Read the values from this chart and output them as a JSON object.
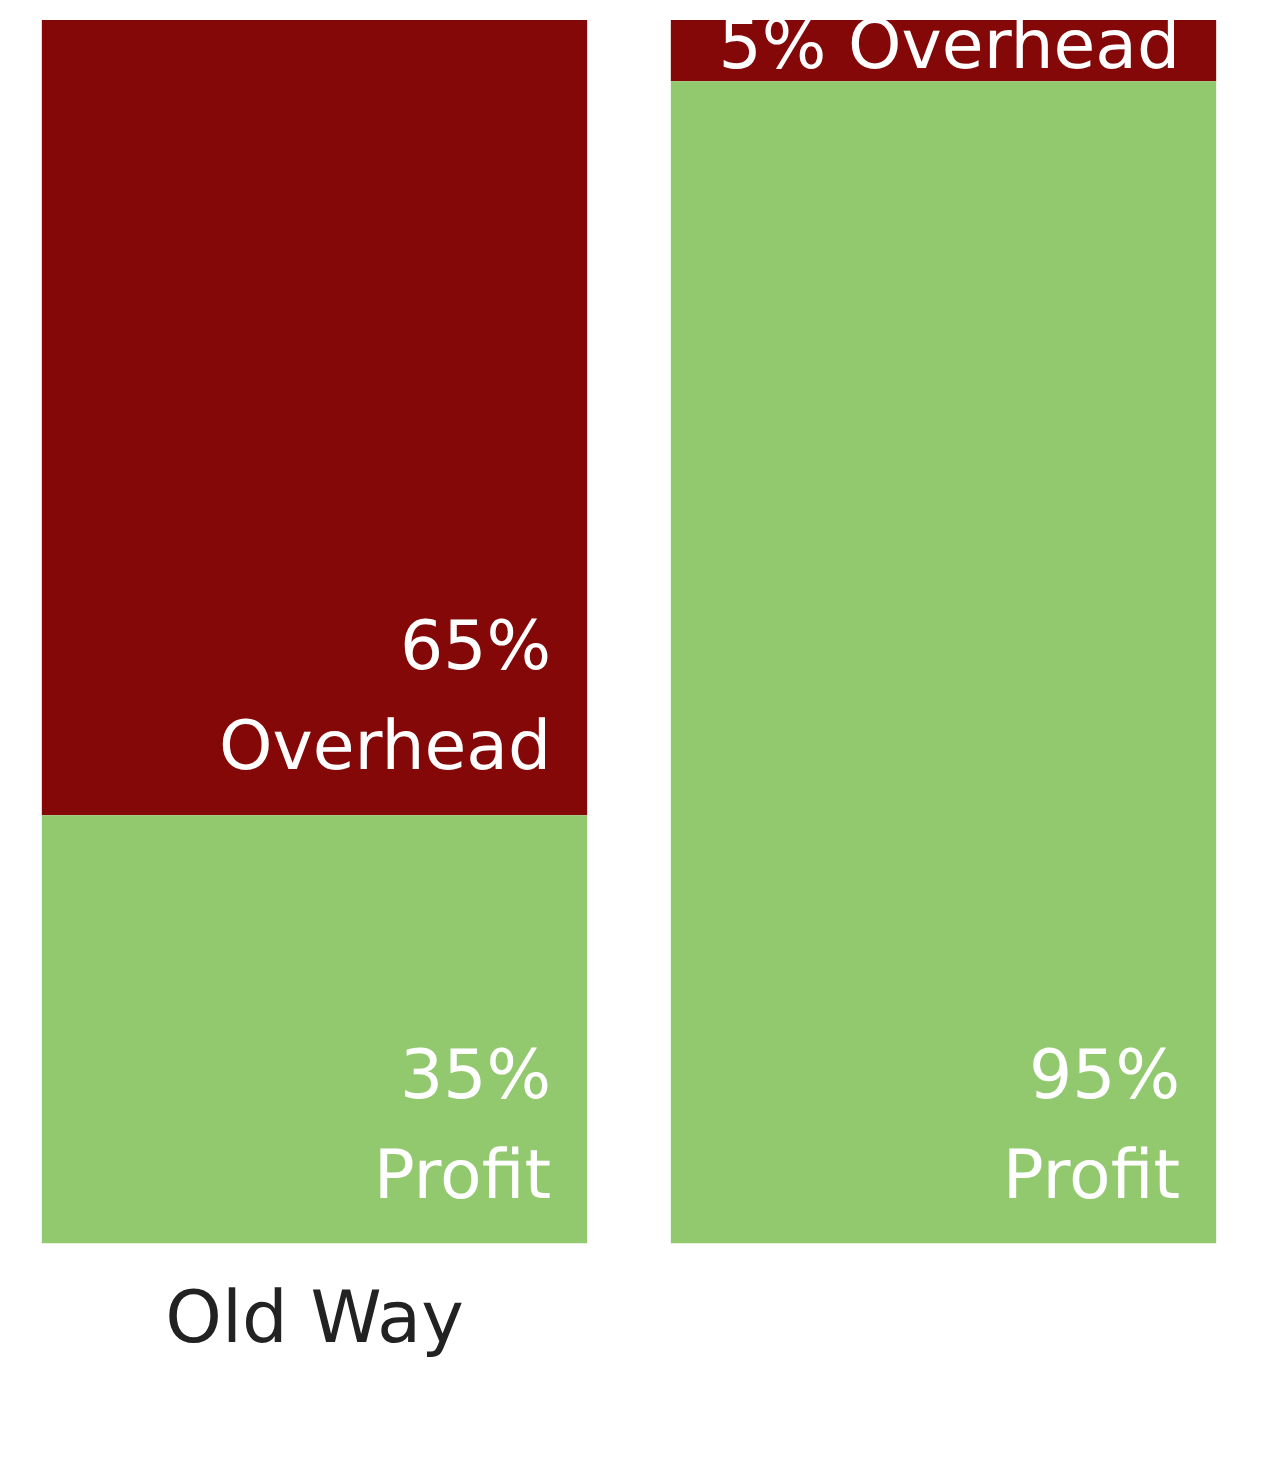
{
  "chart_data": {
    "type": "bar",
    "stacked": true,
    "categories": [
      "Old Way",
      null
    ],
    "series": [
      {
        "name": "Profit",
        "color": "#92c96e",
        "values": [
          35,
          95
        ],
        "value_labels": [
          "35%",
          "95%"
        ]
      },
      {
        "name": "Overhead",
        "color": "#850808",
        "values": [
          65,
          5
        ],
        "value_labels": [
          "65%",
          "5%"
        ]
      }
    ],
    "ylim": [
      0,
      100
    ],
    "tick_labels": "x",
    "grid": false,
    "legend": false
  }
}
